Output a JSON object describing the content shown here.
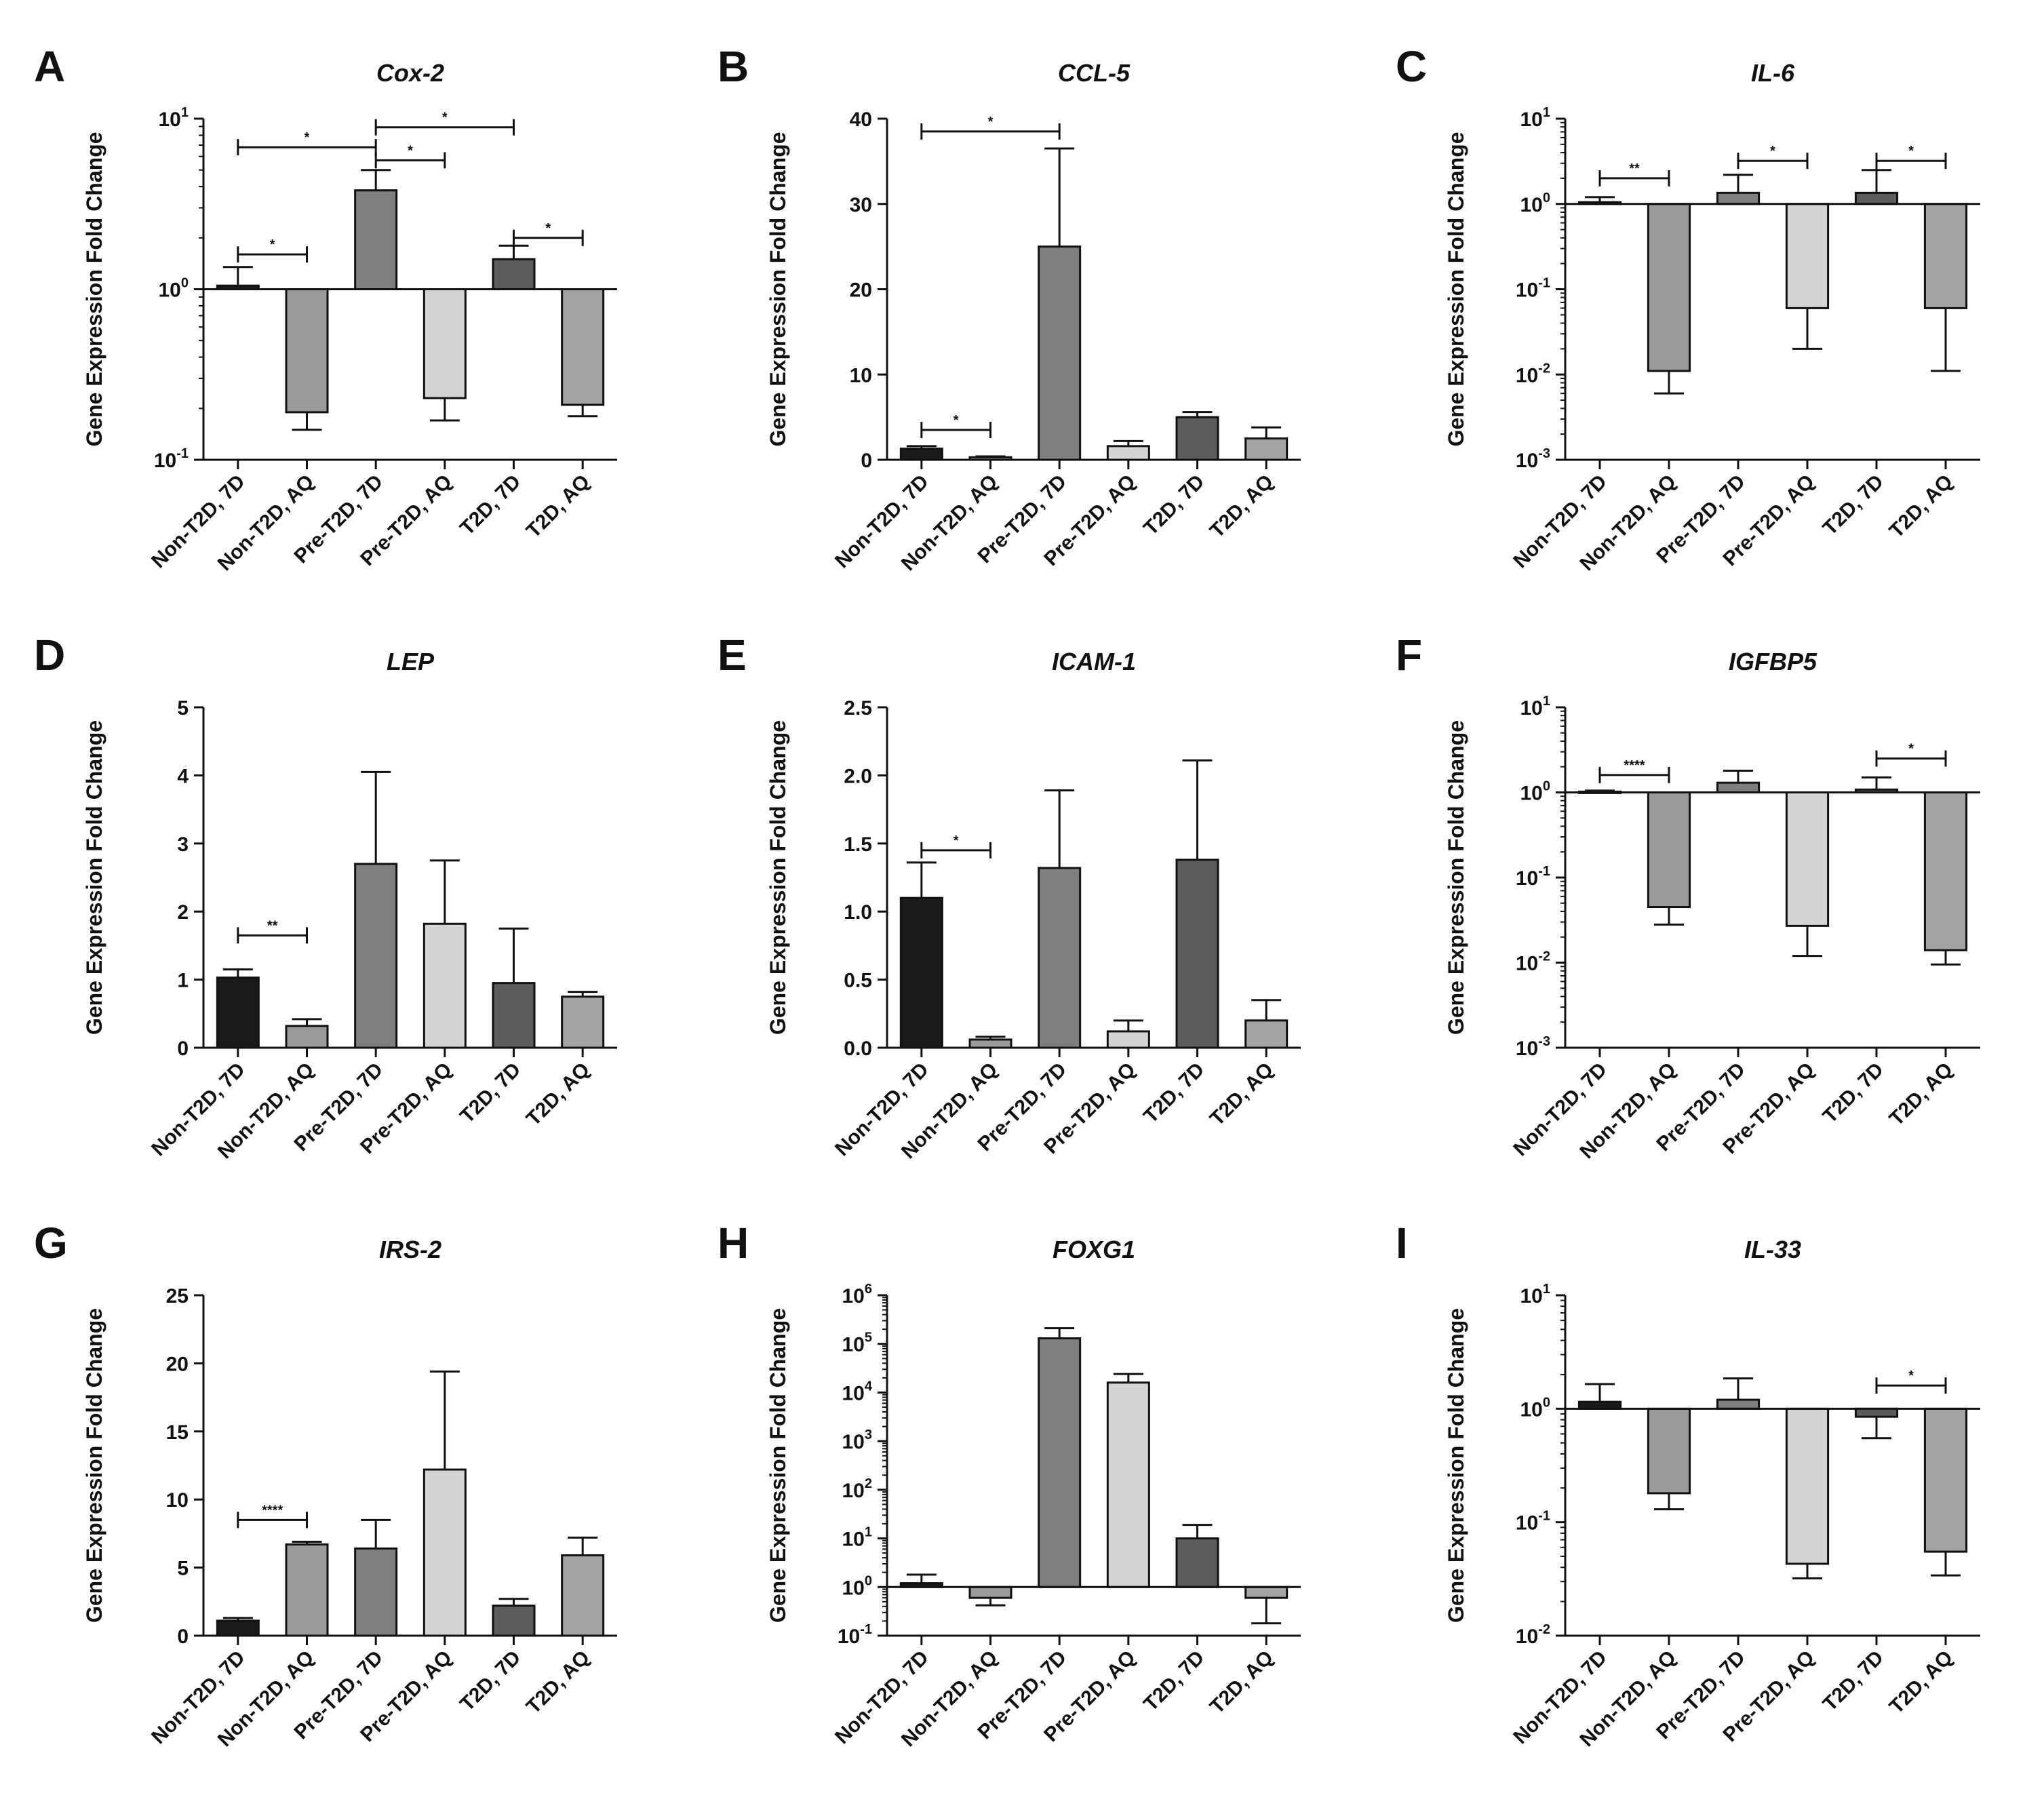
{
  "chart_data": [
    {
      "panel": "A",
      "title": "Cox-2",
      "type": "bar",
      "scale": "log",
      "ylabel": "Gene Expression Fold Change",
      "ylim": [
        0.1,
        10
      ],
      "yticks": [
        {
          "base": "10",
          "exp": "-1",
          "value": 0.1
        },
        {
          "base": "10",
          "exp": "0",
          "value": 1
        },
        {
          "base": "10",
          "exp": "1",
          "value": 10
        }
      ],
      "categories": [
        "Non-T2D, 7D",
        "Non-T2D, AQ",
        "Pre-T2D, 7D",
        "Pre-T2D, AQ",
        "T2D, 7D",
        "T2D, AQ"
      ],
      "values": [
        1.05,
        0.19,
        3.8,
        0.23,
        1.5,
        0.21
      ],
      "errors": [
        1.35,
        0.15,
        5.0,
        0.17,
        1.8,
        0.18
      ],
      "colors": [
        "#1a1a1a",
        "#9a9a9a",
        "#7f7f7f",
        "#d4d4d4",
        "#5c5c5c",
        "#a3a3a3"
      ],
      "significance": [
        {
          "from": 0,
          "to": 1,
          "y": 1.6,
          "label": "*"
        },
        {
          "from": 0,
          "to": 2,
          "y": 6.8,
          "label": "*"
        },
        {
          "from": 2,
          "to": 3,
          "y": 5.7,
          "label": "*"
        },
        {
          "from": 2,
          "to": 4,
          "y": 8.9,
          "label": "*"
        },
        {
          "from": 4,
          "to": 5,
          "y": 2.0,
          "label": "*"
        }
      ]
    },
    {
      "panel": "B",
      "title": "CCL-5",
      "type": "bar",
      "scale": "linear",
      "ylabel": "Gene Expression Fold Change",
      "ylim": [
        0,
        40
      ],
      "yticks": [
        {
          "label": "0",
          "value": 0
        },
        {
          "label": "10",
          "value": 10
        },
        {
          "label": "20",
          "value": 20
        },
        {
          "label": "30",
          "value": 30
        },
        {
          "label": "40",
          "value": 40
        }
      ],
      "categories": [
        "Non-T2D, 7D",
        "Non-T2D, AQ",
        "Pre-T2D, 7D",
        "Pre-T2D, AQ",
        "T2D, 7D",
        "T2D, AQ"
      ],
      "values": [
        1.3,
        0.3,
        25,
        1.6,
        5.0,
        2.5
      ],
      "errors": [
        1.6,
        0.4,
        36.5,
        2.2,
        5.6,
        3.8
      ],
      "colors": [
        "#1a1a1a",
        "#9a9a9a",
        "#7f7f7f",
        "#d4d4d4",
        "#5c5c5c",
        "#a3a3a3"
      ],
      "significance": [
        {
          "from": 0,
          "to": 1,
          "y": 3.5,
          "label": "*"
        },
        {
          "from": 0,
          "to": 2,
          "y": 38.5,
          "label": "*"
        }
      ]
    },
    {
      "panel": "C",
      "title": "IL-6",
      "type": "bar",
      "scale": "log",
      "ylabel": "Gene Expression Fold Change",
      "ylim": [
        0.001,
        10
      ],
      "yticks": [
        {
          "base": "10",
          "exp": "-3",
          "value": 0.001
        },
        {
          "base": "10",
          "exp": "-2",
          "value": 0.01
        },
        {
          "base": "10",
          "exp": "-1",
          "value": 0.1
        },
        {
          "base": "10",
          "exp": "0",
          "value": 1
        },
        {
          "base": "10",
          "exp": "1",
          "value": 10
        }
      ],
      "categories": [
        "Non-T2D, 7D",
        "Non-T2D, AQ",
        "Pre-T2D, 7D",
        "Pre-T2D, AQ",
        "T2D, 7D",
        "T2D, AQ"
      ],
      "values": [
        1.05,
        0.011,
        1.35,
        0.06,
        1.35,
        0.06
      ],
      "errors": [
        1.2,
        0.006,
        2.2,
        0.02,
        2.5,
        0.011
      ],
      "colors": [
        "#1a1a1a",
        "#9a9a9a",
        "#7f7f7f",
        "#d4d4d4",
        "#5c5c5c",
        "#a3a3a3"
      ],
      "significance": [
        {
          "from": 0,
          "to": 1,
          "y": 2.0,
          "label": "**"
        },
        {
          "from": 2,
          "to": 3,
          "y": 3.2,
          "label": "*"
        },
        {
          "from": 4,
          "to": 5,
          "y": 3.2,
          "label": "*"
        }
      ]
    },
    {
      "panel": "D",
      "title": "LEP",
      "type": "bar",
      "scale": "linear",
      "ylabel": "Gene Expression Fold Change",
      "ylim": [
        0,
        5
      ],
      "yticks": [
        {
          "label": "0",
          "value": 0
        },
        {
          "label": "1",
          "value": 1
        },
        {
          "label": "2",
          "value": 2
        },
        {
          "label": "3",
          "value": 3
        },
        {
          "label": "4",
          "value": 4
        },
        {
          "label": "5",
          "value": 5
        }
      ],
      "categories": [
        "Non-T2D, 7D",
        "Non-T2D, AQ",
        "Pre-T2D, 7D",
        "Pre-T2D, AQ",
        "T2D, 7D",
        "T2D, AQ"
      ],
      "values": [
        1.03,
        0.32,
        2.7,
        1.82,
        0.95,
        0.75
      ],
      "errors": [
        1.15,
        0.42,
        4.05,
        2.75,
        1.75,
        0.82
      ],
      "colors": [
        "#1a1a1a",
        "#9a9a9a",
        "#7f7f7f",
        "#d4d4d4",
        "#5c5c5c",
        "#a3a3a3"
      ],
      "significance": [
        {
          "from": 0,
          "to": 1,
          "y": 1.65,
          "label": "**"
        }
      ]
    },
    {
      "panel": "E",
      "title": "ICAM-1",
      "type": "bar",
      "scale": "linear",
      "ylabel": "Gene Expression Fold Change",
      "ylim": [
        0,
        2.5
      ],
      "yticks": [
        {
          "label": "0.0",
          "value": 0
        },
        {
          "label": "0.5",
          "value": 0.5
        },
        {
          "label": "1.0",
          "value": 1.0
        },
        {
          "label": "1.5",
          "value": 1.5
        },
        {
          "label": "2.0",
          "value": 2.0
        },
        {
          "label": "2.5",
          "value": 2.5
        }
      ],
      "categories": [
        "Non-T2D, 7D",
        "Non-T2D, AQ",
        "Pre-T2D, 7D",
        "Pre-T2D, AQ",
        "T2D, 7D",
        "T2D, AQ"
      ],
      "values": [
        1.1,
        0.06,
        1.32,
        0.12,
        1.38,
        0.2
      ],
      "errors": [
        1.36,
        0.08,
        1.89,
        0.2,
        2.11,
        0.35
      ],
      "colors": [
        "#1a1a1a",
        "#9a9a9a",
        "#7f7f7f",
        "#d4d4d4",
        "#5c5c5c",
        "#a3a3a3"
      ],
      "significance": [
        {
          "from": 0,
          "to": 1,
          "y": 1.45,
          "label": "*"
        }
      ]
    },
    {
      "panel": "F",
      "title": "IGFBP5",
      "type": "bar",
      "scale": "log",
      "ylabel": "Gene Expression Fold Change",
      "ylim": [
        0.001,
        10
      ],
      "yticks": [
        {
          "base": "10",
          "exp": "-3",
          "value": 0.001
        },
        {
          "base": "10",
          "exp": "-2",
          "value": 0.01
        },
        {
          "base": "10",
          "exp": "-1",
          "value": 0.1
        },
        {
          "base": "10",
          "exp": "0",
          "value": 1
        },
        {
          "base": "10",
          "exp": "1",
          "value": 10
        }
      ],
      "categories": [
        "Non-T2D, 7D",
        "Non-T2D, AQ",
        "Pre-T2D, 7D",
        "Pre-T2D, AQ",
        "T2D, 7D",
        "T2D, AQ"
      ],
      "values": [
        1.02,
        0.045,
        1.3,
        0.027,
        1.08,
        0.014
      ],
      "errors": [
        1.05,
        0.028,
        1.8,
        0.012,
        1.5,
        0.0095
      ],
      "colors": [
        "#1a1a1a",
        "#9a9a9a",
        "#7f7f7f",
        "#d4d4d4",
        "#5c5c5c",
        "#a3a3a3"
      ],
      "significance": [
        {
          "from": 0,
          "to": 1,
          "y": 1.6,
          "label": "****"
        },
        {
          "from": 4,
          "to": 5,
          "y": 2.5,
          "label": "*"
        }
      ]
    },
    {
      "panel": "G",
      "title": "IRS-2",
      "type": "bar",
      "scale": "linear",
      "ylabel": "Gene Expression Fold Change",
      "ylim": [
        0,
        25
      ],
      "yticks": [
        {
          "label": "0",
          "value": 0
        },
        {
          "label": "5",
          "value": 5
        },
        {
          "label": "10",
          "value": 10
        },
        {
          "label": "15",
          "value": 15
        },
        {
          "label": "20",
          "value": 20
        },
        {
          "label": "25",
          "value": 25
        }
      ],
      "categories": [
        "Non-T2D, 7D",
        "Non-T2D, AQ",
        "Pre-T2D, 7D",
        "Pre-T2D, AQ",
        "T2D, 7D",
        "T2D, AQ"
      ],
      "values": [
        1.1,
        6.7,
        6.4,
        12.2,
        2.2,
        5.9
      ],
      "errors": [
        1.3,
        6.9,
        8.5,
        19.4,
        2.7,
        7.2
      ],
      "colors": [
        "#1a1a1a",
        "#9a9a9a",
        "#7f7f7f",
        "#d4d4d4",
        "#5c5c5c",
        "#a3a3a3"
      ],
      "significance": [
        {
          "from": 0,
          "to": 1,
          "y": 8.5,
          "label": "****"
        }
      ]
    },
    {
      "panel": "H",
      "title": "FOXG1",
      "type": "bar",
      "scale": "log",
      "ylabel": "Gene Expression Fold Change",
      "ylim": [
        0.1,
        1000000
      ],
      "yticks": [
        {
          "base": "10",
          "exp": "-1",
          "value": 0.1
        },
        {
          "base": "10",
          "exp": "0",
          "value": 1
        },
        {
          "base": "10",
          "exp": "1",
          "value": 10
        },
        {
          "base": "10",
          "exp": "2",
          "value": 100
        },
        {
          "base": "10",
          "exp": "3",
          "value": 1000
        },
        {
          "base": "10",
          "exp": "4",
          "value": 10000
        },
        {
          "base": "10",
          "exp": "5",
          "value": 100000
        },
        {
          "base": "10",
          "exp": "6",
          "value": 1000000
        }
      ],
      "categories": [
        "Non-T2D, 7D",
        "Non-T2D, AQ",
        "Pre-T2D, 7D",
        "Pre-T2D, AQ",
        "T2D, 7D",
        "T2D, AQ"
      ],
      "values": [
        1.2,
        0.6,
        130000,
        16000,
        10,
        0.6
      ],
      "errors": [
        1.8,
        0.42,
        210000,
        24000,
        19,
        0.18
      ],
      "colors": [
        "#1a1a1a",
        "#9a9a9a",
        "#7f7f7f",
        "#d4d4d4",
        "#5c5c5c",
        "#a3a3a3"
      ],
      "significance": []
    },
    {
      "panel": "I",
      "title": "IL-33",
      "type": "bar",
      "scale": "log",
      "ylabel": "Gene Expression Fold Change",
      "ylim": [
        0.01,
        10
      ],
      "yticks": [
        {
          "base": "10",
          "exp": "-2",
          "value": 0.01
        },
        {
          "base": "10",
          "exp": "-1",
          "value": 0.1
        },
        {
          "base": "10",
          "exp": "0",
          "value": 1
        },
        {
          "base": "10",
          "exp": "1",
          "value": 10
        }
      ],
      "categories": [
        "Non-T2D, 7D",
        "Non-T2D, AQ",
        "Pre-T2D, 7D",
        "Pre-T2D, AQ",
        "T2D, 7D",
        "T2D, AQ"
      ],
      "values": [
        1.15,
        0.18,
        1.2,
        0.043,
        0.85,
        0.055
      ],
      "errors": [
        1.65,
        0.13,
        1.85,
        0.032,
        0.55,
        0.034
      ],
      "colors": [
        "#1a1a1a",
        "#9a9a9a",
        "#7f7f7f",
        "#d4d4d4",
        "#5c5c5c",
        "#a3a3a3"
      ],
      "significance": [
        {
          "from": 4,
          "to": 5,
          "y": 1.6,
          "label": "*"
        }
      ]
    }
  ]
}
